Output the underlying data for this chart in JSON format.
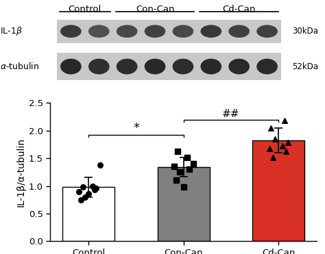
{
  "categories": [
    "Control",
    "Con-Can",
    "Cd-Can"
  ],
  "bar_means": [
    0.98,
    1.34,
    1.82
  ],
  "bar_errors": [
    0.18,
    0.17,
    0.22
  ],
  "bar_colors": [
    "#ffffff",
    "#808080",
    "#d93025"
  ],
  "bar_edgecolors": [
    "#000000",
    "#000000",
    "#000000"
  ],
  "ylim": [
    0.0,
    2.5
  ],
  "yticks": [
    0.0,
    0.5,
    1.0,
    1.5,
    2.0,
    2.5
  ],
  "ylabel": "IL-1β/α-tubulin",
  "scatter_control": [
    0.75,
    0.8,
    0.86,
    0.9,
    0.93,
    0.96,
    0.98,
    1.0,
    1.38
  ],
  "scatter_concan": [
    0.98,
    1.1,
    1.25,
    1.3,
    1.35,
    1.4,
    1.52,
    1.62
  ],
  "scatter_cdcan": [
    1.52,
    1.62,
    1.68,
    1.72,
    1.78,
    1.85,
    2.05,
    2.18
  ],
  "group_labels": [
    "Control",
    "Con-Can",
    "Cd-Can"
  ],
  "wb_bg_color": "#d8d8d8",
  "wb_band_il1b_colors": [
    "#3a3a3a",
    "#505050",
    "#484848",
    "#404040",
    "#484848",
    "#383838",
    "#404040",
    "#404040"
  ],
  "wb_band_tub_colors": [
    "#282828",
    "#303030",
    "#2c2c2c",
    "#282828",
    "#2c2c2c",
    "#282828",
    "#2a2a2a",
    "#2a2a2a"
  ],
  "background_color": "#ffffff",
  "axis_fontsize": 10,
  "tick_fontsize": 9.5
}
